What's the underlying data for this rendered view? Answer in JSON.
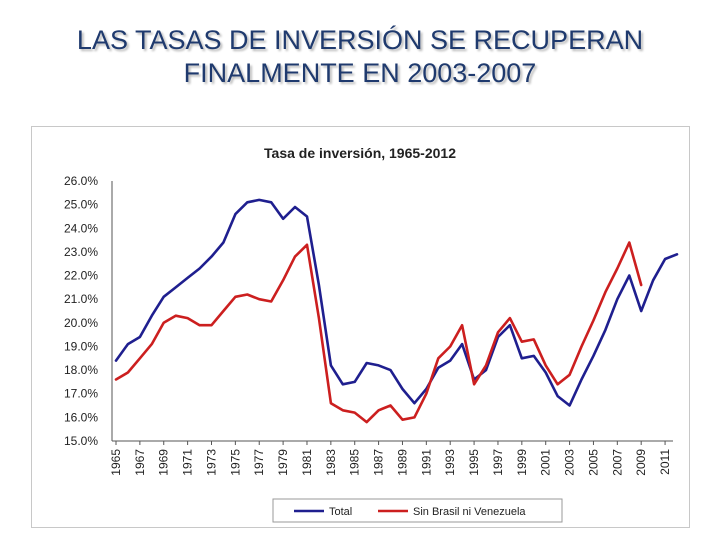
{
  "slide": {
    "title_line1": "LAS TASAS DE INVERSIÓN SE RECUPERAN",
    "title_line2": "FINALMENTE EN 2003-2007"
  },
  "chart_data": {
    "type": "line",
    "title": "Tasa de inversión, 1965-2012",
    "xlabel": "",
    "ylabel": "",
    "ylim": [
      15,
      26
    ],
    "yticks": [
      "15.0%",
      "16.0%",
      "17.0%",
      "18.0%",
      "19.0%",
      "20.0%",
      "21.0%",
      "22.0%",
      "23.0%",
      "24.0%",
      "25.0%",
      "26.0%"
    ],
    "xticks": [
      "1965",
      "1967",
      "1969",
      "1971",
      "1973",
      "1975",
      "1977",
      "1979",
      "1981",
      "1983",
      "1985",
      "1987",
      "1989",
      "1991",
      "1993",
      "1995",
      "1997",
      "1999",
      "2001",
      "2003",
      "2005",
      "2007",
      "2009",
      "2011"
    ],
    "legend_position": "bottom",
    "series": [
      {
        "name": "Total",
        "color": "#1f1f8f",
        "x": [
          1965,
          1966,
          1967,
          1968,
          1969,
          1970,
          1971,
          1972,
          1973,
          1974,
          1975,
          1976,
          1977,
          1978,
          1979,
          1980,
          1981,
          1982,
          1983,
          1984,
          1985,
          1986,
          1987,
          1988,
          1989,
          1990,
          1991,
          1992,
          1993,
          1994,
          1995,
          1996,
          1997,
          1998,
          1999,
          2000,
          2001,
          2002,
          2003,
          2004,
          2005,
          2006,
          2007,
          2008,
          2009,
          2010,
          2011,
          2012
        ],
        "values": [
          18.4,
          19.1,
          19.4,
          20.3,
          21.1,
          21.5,
          21.9,
          22.3,
          22.8,
          23.4,
          24.6,
          25.1,
          25.2,
          25.1,
          24.4,
          24.9,
          24.5,
          21.6,
          18.2,
          17.4,
          17.5,
          18.3,
          18.2,
          18.0,
          17.2,
          16.6,
          17.2,
          18.1,
          18.4,
          19.1,
          17.6,
          18.0,
          19.4,
          19.9,
          18.5,
          18.6,
          17.9,
          16.9,
          16.5,
          17.6,
          18.6,
          19.7,
          21.0,
          22.0,
          20.5,
          21.8,
          22.7,
          22.9
        ]
      },
      {
        "name": "Sin Brasil ni Venezuela",
        "color": "#cc1f1f",
        "x": [
          1965,
          1966,
          1967,
          1968,
          1969,
          1970,
          1971,
          1972,
          1973,
          1974,
          1975,
          1976,
          1977,
          1978,
          1979,
          1980,
          1981,
          1982,
          1983,
          1984,
          1985,
          1986,
          1987,
          1988,
          1989,
          1990,
          1991,
          1992,
          1993,
          1994,
          1995,
          1996,
          1997,
          1998,
          1999,
          2000,
          2001,
          2002,
          2003,
          2004,
          2005,
          2006,
          2007,
          2008,
          2009
        ],
        "values": [
          17.6,
          17.9,
          18.5,
          19.1,
          20.0,
          20.3,
          20.2,
          19.9,
          19.9,
          20.5,
          21.1,
          21.2,
          21.0,
          20.9,
          21.8,
          22.8,
          23.3,
          20.2,
          16.6,
          16.3,
          16.2,
          15.8,
          16.3,
          16.5,
          15.9,
          16.0,
          17.0,
          18.5,
          19.0,
          19.9,
          17.4,
          18.2,
          19.6,
          20.2,
          19.2,
          19.3,
          18.2,
          17.4,
          17.8,
          19.0,
          20.1,
          21.3,
          22.3,
          23.4,
          21.6
        ]
      }
    ]
  }
}
